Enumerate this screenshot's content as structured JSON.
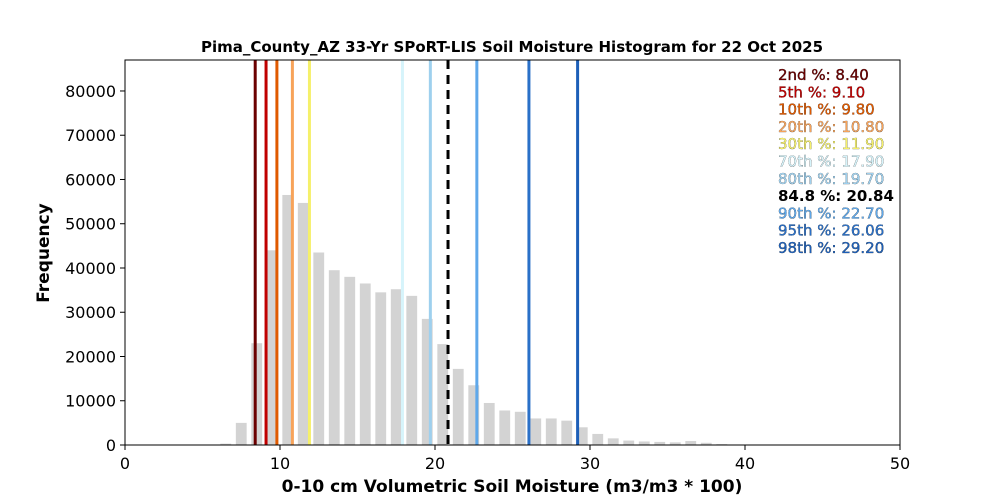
{
  "chart_data": {
    "type": "bar",
    "title": "Pima_County_AZ 33-Yr SPoRT-LIS Soil Moisture Histogram for 22 Oct 2025",
    "xlabel": "0-10 cm Volumetric Soil Moisture (m3/m3 * 100)",
    "ylabel": "Frequency",
    "xlim": [
      0,
      50
    ],
    "ylim": [
      0,
      87000
    ],
    "xticks": [
      "0",
      "10",
      "20",
      "30",
      "40",
      "50"
    ],
    "yticks": [
      "0",
      "10000",
      "20000",
      "30000",
      "40000",
      "50000",
      "60000",
      "70000",
      "80000"
    ],
    "bar_color": "#d3d3d3",
    "bins": [
      {
        "x": 6.5,
        "value": 300
      },
      {
        "x": 7.5,
        "value": 5000
      },
      {
        "x": 8.5,
        "value": 23000
      },
      {
        "x": 9.5,
        "value": 44000
      },
      {
        "x": 10.5,
        "value": 56500
      },
      {
        "x": 11.5,
        "value": 54700
      },
      {
        "x": 12.5,
        "value": 43500
      },
      {
        "x": 13.5,
        "value": 39500
      },
      {
        "x": 14.5,
        "value": 38000
      },
      {
        "x": 15.5,
        "value": 36500
      },
      {
        "x": 16.5,
        "value": 34500
      },
      {
        "x": 17.5,
        "value": 35200
      },
      {
        "x": 18.5,
        "value": 33700
      },
      {
        "x": 19.5,
        "value": 28500
      },
      {
        "x": 20.5,
        "value": 22800
      },
      {
        "x": 21.5,
        "value": 17200
      },
      {
        "x": 22.5,
        "value": 13500
      },
      {
        "x": 23.5,
        "value": 9500
      },
      {
        "x": 24.5,
        "value": 7800
      },
      {
        "x": 25.5,
        "value": 7500
      },
      {
        "x": 26.5,
        "value": 6000
      },
      {
        "x": 27.5,
        "value": 6000
      },
      {
        "x": 28.5,
        "value": 5500
      },
      {
        "x": 29.5,
        "value": 4000
      },
      {
        "x": 30.5,
        "value": 2500
      },
      {
        "x": 31.5,
        "value": 1500
      },
      {
        "x": 32.5,
        "value": 1000
      },
      {
        "x": 33.5,
        "value": 800
      },
      {
        "x": 34.5,
        "value": 700
      },
      {
        "x": 35.5,
        "value": 600
      },
      {
        "x": 36.5,
        "value": 900
      },
      {
        "x": 37.5,
        "value": 500
      },
      {
        "x": 38.5,
        "value": 200
      }
    ],
    "percentiles": [
      {
        "label": "2nd %: 8.40",
        "value": 8.4,
        "color": "#6b0000",
        "dashed": false,
        "bold": false
      },
      {
        "label": "5th %: 9.10",
        "value": 9.1,
        "color": "#c00000",
        "dashed": false,
        "bold": false
      },
      {
        "label": "10th %: 9.80",
        "value": 9.8,
        "color": "#e05a00",
        "dashed": false,
        "bold": false
      },
      {
        "label": "20th %: 10.80",
        "value": 10.8,
        "color": "#f7a35a",
        "dashed": false,
        "bold": false
      },
      {
        "label": "30th %: 11.90",
        "value": 11.9,
        "color": "#f5f06a",
        "dashed": false,
        "bold": false
      },
      {
        "label": "70th %: 17.90",
        "value": 17.9,
        "color": "#d6f4fb",
        "dashed": false,
        "bold": false
      },
      {
        "label": "80th %: 19.70",
        "value": 19.7,
        "color": "#9ed0ee",
        "dashed": false,
        "bold": false
      },
      {
        "label": "84.8 %: 20.84",
        "value": 20.84,
        "color": "#000000",
        "dashed": true,
        "bold": true
      },
      {
        "label": "90th %: 22.70",
        "value": 22.7,
        "color": "#5fa8ea",
        "dashed": false,
        "bold": false
      },
      {
        "label": "95th %: 26.06",
        "value": 26.06,
        "color": "#2a70c8",
        "dashed": false,
        "bold": false
      },
      {
        "label": "98th %: 29.20",
        "value": 29.2,
        "color": "#1d5fb8",
        "dashed": false,
        "bold": false
      }
    ]
  }
}
